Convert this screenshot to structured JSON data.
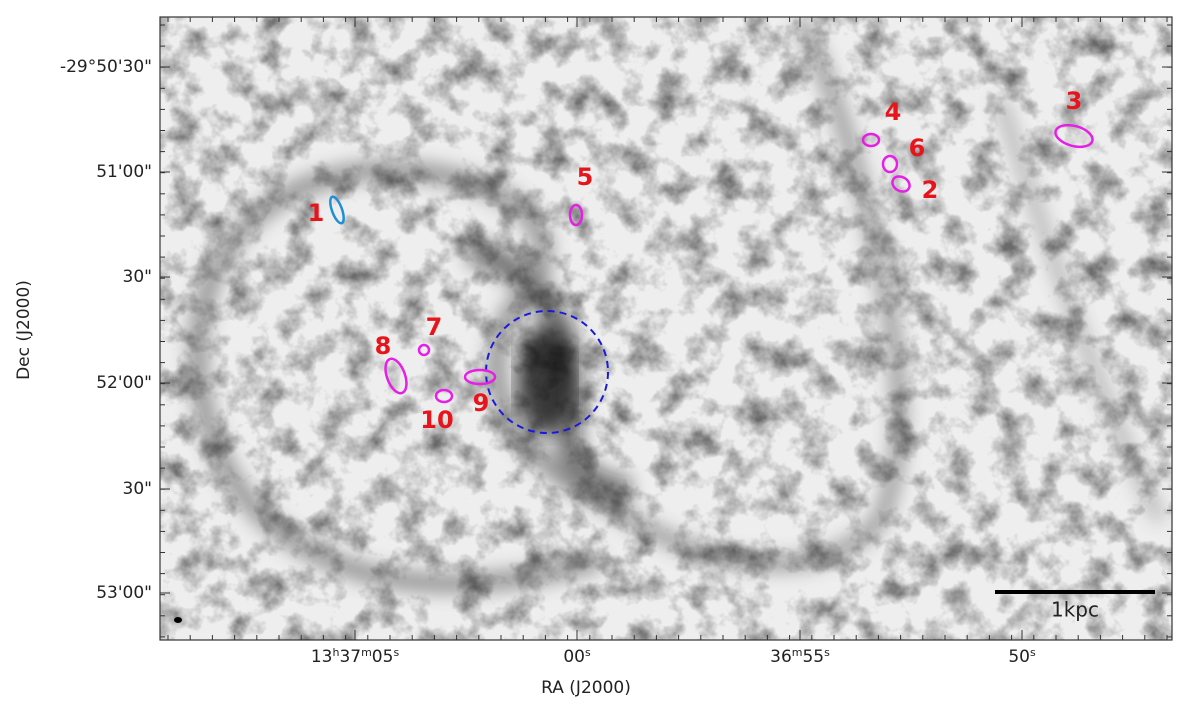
{
  "figure": {
    "x_axis": {
      "label": "RA (J2000)",
      "ticks": [
        "13h37m05s",
        "00s",
        "36m55s",
        "50s"
      ]
    },
    "y_axis": {
      "label": "Dec (J2000)",
      "ticks": [
        "-29°50'30\"",
        "51'00\"",
        "30\"",
        "52'00\"",
        "30\"",
        "53'00\""
      ]
    },
    "regions": [
      "1",
      "5",
      "4",
      "6",
      "2",
      "3",
      "7",
      "8",
      "9",
      "10"
    ],
    "scale_bar": "1kpc"
  }
}
